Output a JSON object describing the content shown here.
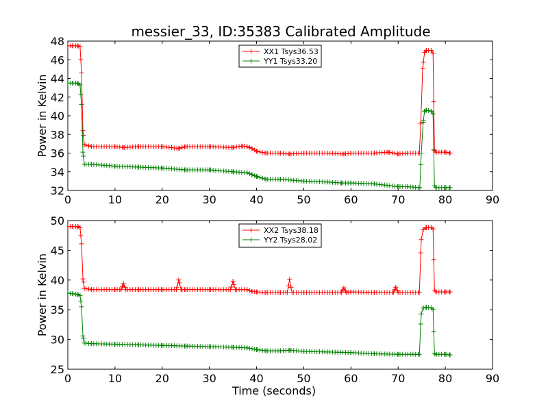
{
  "figure": {
    "title": "messier_33, ID:35383 Calibrated Amplitude",
    "background": "#ffffff"
  },
  "chart_data": [
    {
      "type": "line",
      "title": "messier_33, ID:35383 Calibrated Amplitude",
      "xlabel": "",
      "ylabel": "Power in Kelvin",
      "xlim": [
        0,
        90
      ],
      "ylim": [
        32,
        48
      ],
      "xticks": [
        0,
        10,
        20,
        30,
        40,
        50,
        60,
        70,
        80,
        90
      ],
      "yticks": [
        32,
        34,
        36,
        38,
        40,
        42,
        44,
        46,
        48
      ],
      "grid": false,
      "legend_position": "top-center",
      "series": [
        {
          "name": "XX1 Tsys36.53",
          "color": "#ff0000",
          "marker": "plus",
          "points": [
            [
              0,
              47.5
            ],
            [
              1,
              47.5
            ],
            [
              2,
              47.5
            ],
            [
              2.6,
              47.4
            ],
            [
              2.9,
              44.6
            ],
            [
              3.2,
              38.4
            ],
            [
              3.5,
              36.9
            ],
            [
              5,
              36.7
            ],
            [
              10,
              36.7
            ],
            [
              11.9,
              36.6
            ],
            [
              15,
              36.7
            ],
            [
              20,
              36.7
            ],
            [
              23.5,
              36.5
            ],
            [
              25,
              36.7
            ],
            [
              30,
              36.7
            ],
            [
              35,
              36.6
            ],
            [
              37,
              36.75
            ],
            [
              38,
              36.7
            ],
            [
              39,
              36.5
            ],
            [
              40,
              36.2
            ],
            [
              42,
              36.0
            ],
            [
              45,
              36.0
            ],
            [
              47,
              35.9
            ],
            [
              50,
              36.0
            ],
            [
              55,
              36.0
            ],
            [
              58.5,
              35.9
            ],
            [
              60,
              36.0
            ],
            [
              65,
              36.0
            ],
            [
              68,
              36.1
            ],
            [
              70,
              35.9
            ],
            [
              72,
              36.0
            ],
            [
              74.5,
              36.0
            ],
            [
              74.8,
              39.2
            ],
            [
              75.2,
              45.1
            ],
            [
              75.6,
              46.8
            ],
            [
              76,
              47.0
            ],
            [
              77,
              47.0
            ],
            [
              77.4,
              46.7
            ],
            [
              77.7,
              36.3
            ],
            [
              78,
              36.1
            ],
            [
              80,
              36.1
            ],
            [
              81,
              36.0
            ]
          ]
        },
        {
          "name": "YY1 Tsys33.20",
          "color": "#008000",
          "marker": "plus",
          "points": [
            [
              0,
              43.5
            ],
            [
              1,
              43.5
            ],
            [
              2,
              43.5
            ],
            [
              2.6,
              43.3
            ],
            [
              2.9,
              41.2
            ],
            [
              3.2,
              36.1
            ],
            [
              3.5,
              34.8
            ],
            [
              5,
              34.8
            ],
            [
              10,
              34.6
            ],
            [
              15,
              34.5
            ],
            [
              20,
              34.4
            ],
            [
              25,
              34.2
            ],
            [
              30,
              34.2
            ],
            [
              35,
              34.0
            ],
            [
              38,
              33.9
            ],
            [
              39,
              33.7
            ],
            [
              40,
              33.5
            ],
            [
              42,
              33.2
            ],
            [
              45,
              33.2
            ],
            [
              50,
              33.0
            ],
            [
              55,
              32.9
            ],
            [
              58,
              32.8
            ],
            [
              60,
              32.8
            ],
            [
              65,
              32.7
            ],
            [
              70,
              32.4
            ],
            [
              72,
              32.4
            ],
            [
              74.6,
              32.3
            ],
            [
              74.9,
              36.0
            ],
            [
              75.3,
              39.3
            ],
            [
              75.6,
              40.5
            ],
            [
              76,
              40.6
            ],
            [
              77,
              40.5
            ],
            [
              77.4,
              40.2
            ],
            [
              77.7,
              32.5
            ],
            [
              78,
              32.3
            ],
            [
              80,
              32.3
            ],
            [
              81,
              32.3
            ]
          ]
        }
      ]
    },
    {
      "type": "line",
      "title": "",
      "xlabel": "Time (seconds)",
      "ylabel": "Power in Kelvin",
      "xlim": [
        0,
        90
      ],
      "ylim": [
        25,
        50
      ],
      "xticks": [
        0,
        10,
        20,
        30,
        40,
        50,
        60,
        70,
        80,
        90
      ],
      "yticks": [
        25,
        30,
        35,
        40,
        45,
        50
      ],
      "grid": false,
      "legend_position": "top-center",
      "series": [
        {
          "name": "XX2 Tsys38.18",
          "color": "#ff0000",
          "marker": "plus",
          "points": [
            [
              0,
              49.0
            ],
            [
              1,
              49.0
            ],
            [
              2,
              49.0
            ],
            [
              2.6,
              48.8
            ],
            [
              2.9,
              46.1
            ],
            [
              3.2,
              40.2
            ],
            [
              3.5,
              38.6
            ],
            [
              5,
              38.4
            ],
            [
              10,
              38.4
            ],
            [
              11.3,
              38.4
            ],
            [
              11.8,
              39.4
            ],
            [
              12.3,
              38.4
            ],
            [
              15,
              38.4
            ],
            [
              20,
              38.4
            ],
            [
              23,
              38.4
            ],
            [
              23.5,
              40.0
            ],
            [
              24,
              38.4
            ],
            [
              25,
              38.4
            ],
            [
              30,
              38.4
            ],
            [
              34.5,
              38.4
            ],
            [
              35,
              39.8
            ],
            [
              35.5,
              38.4
            ],
            [
              38,
              38.4
            ],
            [
              39,
              38.1
            ],
            [
              40,
              38.0
            ],
            [
              42,
              37.9
            ],
            [
              45,
              37.9
            ],
            [
              46.5,
              37.9
            ],
            [
              47,
              40.1
            ],
            [
              47.5,
              37.9
            ],
            [
              50,
              37.9
            ],
            [
              55,
              37.9
            ],
            [
              58,
              37.9
            ],
            [
              58.5,
              38.7
            ],
            [
              59,
              37.9
            ],
            [
              60,
              38.0
            ],
            [
              65,
              37.9
            ],
            [
              69,
              37.9
            ],
            [
              69.5,
              38.8
            ],
            [
              70,
              37.9
            ],
            [
              74.5,
              37.9
            ],
            [
              74.9,
              46.8
            ],
            [
              75.3,
              48.5
            ],
            [
              76,
              48.8
            ],
            [
              77,
              48.8
            ],
            [
              77.4,
              48.6
            ],
            [
              77.7,
              38.3
            ],
            [
              78,
              38.0
            ],
            [
              80,
              38.0
            ],
            [
              81,
              38.0
            ]
          ]
        },
        {
          "name": "YY2 Tsys28.02",
          "color": "#008000",
          "marker": "plus",
          "points": [
            [
              0,
              37.8
            ],
            [
              1,
              37.7
            ],
            [
              2,
              37.6
            ],
            [
              2.6,
              37.4
            ],
            [
              2.9,
              35.5
            ],
            [
              3.2,
              30.6
            ],
            [
              3.5,
              29.4
            ],
            [
              5,
              29.3
            ],
            [
              10,
              29.2
            ],
            [
              15,
              29.1
            ],
            [
              20,
              29.0
            ],
            [
              25,
              28.9
            ],
            [
              30,
              28.8
            ],
            [
              35,
              28.7
            ],
            [
              38,
              28.6
            ],
            [
              40,
              28.3
            ],
            [
              42,
              28.1
            ],
            [
              45,
              28.1
            ],
            [
              47,
              28.2
            ],
            [
              50,
              28.0
            ],
            [
              55,
              27.9
            ],
            [
              60,
              27.8
            ],
            [
              65,
              27.6
            ],
            [
              70,
              27.5
            ],
            [
              74.5,
              27.5
            ],
            [
              74.9,
              34.3
            ],
            [
              75.3,
              35.3
            ],
            [
              76,
              35.4
            ],
            [
              77,
              35.3
            ],
            [
              77.4,
              35.1
            ],
            [
              77.7,
              27.6
            ],
            [
              78,
              27.5
            ],
            [
              80,
              27.5
            ],
            [
              81,
              27.4
            ]
          ]
        }
      ]
    }
  ]
}
